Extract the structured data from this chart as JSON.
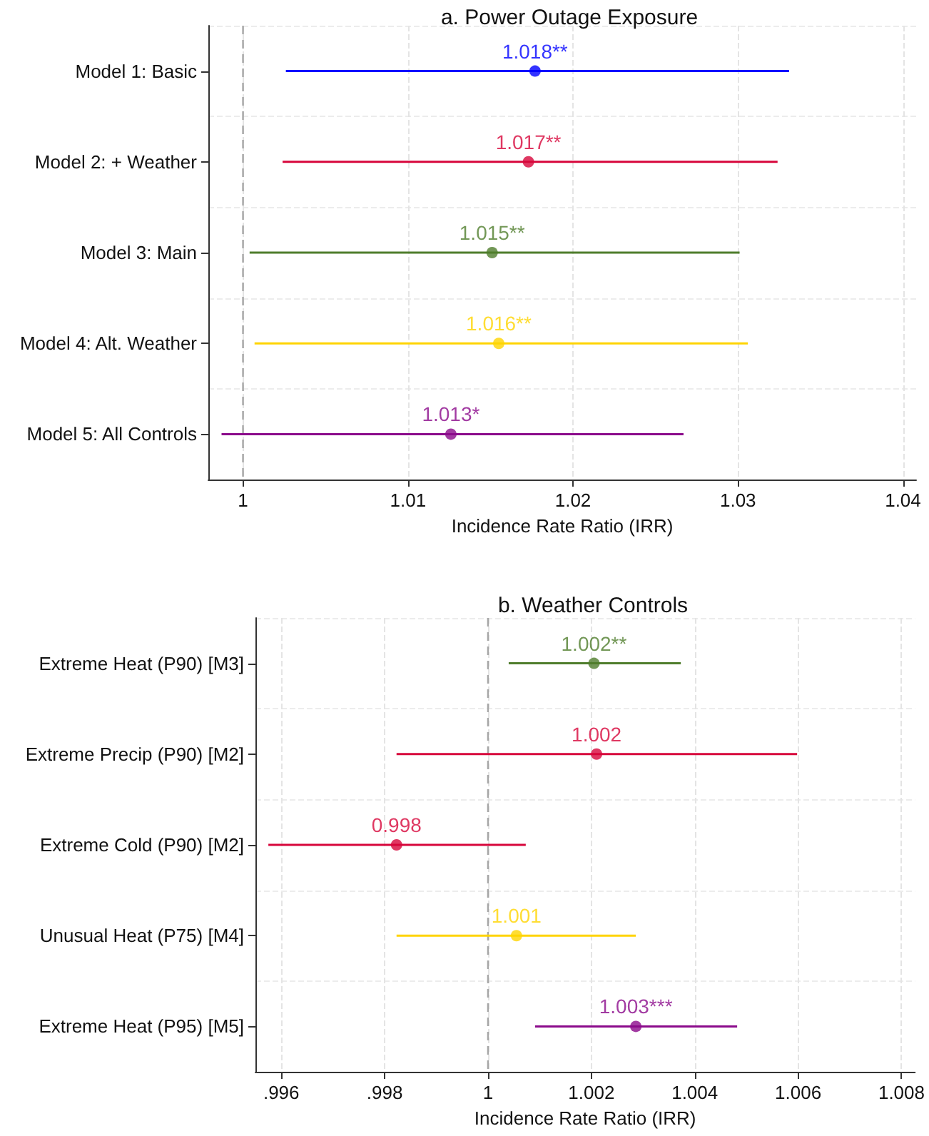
{
  "chart_data": [
    {
      "type": "scatter",
      "title": "a. Power Outage Exposure",
      "xlabel": "Incidence Rate Ratio (IRR)",
      "orientation": "horizontal",
      "categories": [
        "Model 1: Basic",
        "Model 2: + Weather",
        "Model 3: Main",
        "Model 4: Alt. Weather",
        "Model 5: All Controls"
      ],
      "values": [
        1.0177,
        1.0173,
        1.0151,
        1.0155,
        1.0126
      ],
      "errors": [
        [
          1.0026,
          1.0331
        ],
        [
          1.0024,
          1.0324
        ],
        [
          1.0004,
          1.0301
        ],
        [
          1.0007,
          1.0306
        ],
        [
          0.9987,
          1.0267
        ]
      ],
      "colors": [
        "#0000ff",
        "#d7063b",
        "#4f7d2c",
        "#ffd400",
        "#8b0a8b"
      ],
      "value_labels": [
        "1.018**",
        "1.017**",
        "1.015**",
        "1.016**",
        "1.013*"
      ],
      "xlim": [
        0.9979,
        1.0408
      ],
      "xticks": [
        1,
        1.01,
        1.02,
        1.03,
        1.04
      ],
      "ref_lines": [
        {
          "axis": "x",
          "value": 1,
          "color": "#a6a6a6",
          "line_style": "dashed"
        }
      ],
      "grid": true,
      "marker": "circle"
    },
    {
      "type": "scatter",
      "title": "b. Weather Controls",
      "xlabel": "Incidence Rate Ratio (IRR)",
      "orientation": "horizontal",
      "categories": [
        "Extreme Heat (P90) [M3]",
        "Extreme Precip (P90) [M2]",
        "Extreme Cold (P90) [M2]",
        "Unusual Heat (P75) [M4]",
        "Extreme Heat (P95) [M5]"
      ],
      "values": [
        1.00205,
        1.0021,
        0.99823,
        1.00055,
        1.00286
      ],
      "errors": [
        [
          1.0004,
          1.00373
        ],
        [
          0.99823,
          1.00598
        ],
        [
          0.99575,
          1.00073
        ],
        [
          0.99823,
          1.00286
        ],
        [
          1.00091,
          1.00482
        ]
      ],
      "colors": [
        "#4f7d2c",
        "#d7063b",
        "#d7063b",
        "#ffd400",
        "#8b0a8b"
      ],
      "value_labels": [
        "1.002**",
        "1.002",
        "0.998",
        "1.001",
        "1.003***"
      ],
      "xlim": [
        0.9955,
        1.00826
      ],
      "xticks": [
        {
          "value": 0.996,
          "label": ".996"
        },
        {
          "value": 0.998,
          "label": ".998"
        },
        1,
        1.002,
        1.004,
        1.006,
        1.008
      ],
      "ref_lines": [
        {
          "axis": "x",
          "value": 1,
          "color": "#a6a6a6",
          "line_style": "dashed"
        }
      ],
      "grid": true,
      "marker": "circle"
    }
  ]
}
